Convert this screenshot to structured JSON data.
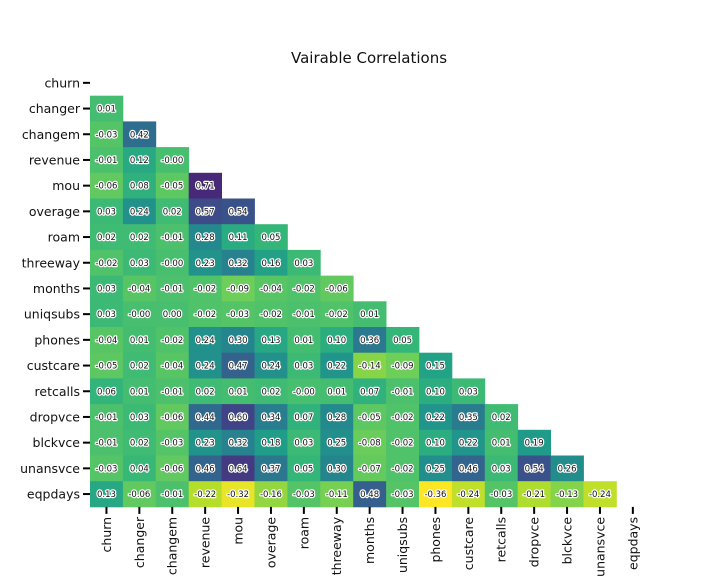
{
  "chart_data": {
    "type": "heatmap",
    "title": "Vairable Correlations",
    "variables": [
      "churn",
      "changer",
      "changem",
      "revenue",
      "mou",
      "overage",
      "roam",
      "threeway",
      "months",
      "uniqsubs",
      "phones",
      "custcare",
      "retcalls",
      "dropvce",
      "blckvce",
      "unansvce",
      "eqpdays"
    ],
    "matrix_lower": [
      [],
      [
        "0.01"
      ],
      [
        "-0.03",
        "0.42"
      ],
      [
        "-0.01",
        "0.12",
        "-0.00"
      ],
      [
        "-0.06",
        "0.08",
        "-0.05",
        "0.71"
      ],
      [
        "0.03",
        "0.24",
        "0.02",
        "0.57",
        "0.54"
      ],
      [
        "0.02",
        "0.02",
        "-0.01",
        "0.28",
        "0.11",
        "0.05"
      ],
      [
        "-0.02",
        "0.03",
        "-0.00",
        "0.23",
        "0.32",
        "0.16",
        "0.03"
      ],
      [
        "0.03",
        "-0.04",
        "-0.01",
        "-0.02",
        "-0.09",
        "-0.04",
        "-0.02",
        "-0.06"
      ],
      [
        "0.03",
        "-0.00",
        "0.00",
        "-0.02",
        "-0.03",
        "-0.02",
        "-0.01",
        "-0.02",
        "0.01"
      ],
      [
        "-0.04",
        "0.01",
        "-0.02",
        "0.24",
        "0.30",
        "0.13",
        "0.01",
        "0.10",
        "0.36",
        "0.05"
      ],
      [
        "-0.05",
        "0.02",
        "-0.04",
        "0.24",
        "0.47",
        "0.24",
        "0.03",
        "0.22",
        "-0.14",
        "-0.09",
        "0.15"
      ],
      [
        "0.06",
        "0.01",
        "-0.01",
        "0.02",
        "0.01",
        "0.02",
        "-0.00",
        "0.01",
        "0.07",
        "-0.01",
        "0.10",
        "0.03"
      ],
      [
        "-0.01",
        "0.03",
        "-0.06",
        "0.44",
        "0.60",
        "0.34",
        "0.07",
        "0.28",
        "-0.05",
        "-0.02",
        "0.22",
        "0.35",
        "0.02"
      ],
      [
        "-0.01",
        "0.02",
        "-0.03",
        "0.23",
        "0.32",
        "0.18",
        "0.03",
        "0.25",
        "-0.08",
        "-0.02",
        "0.10",
        "0.22",
        "0.01",
        "0.19"
      ],
      [
        "-0.03",
        "0.04",
        "-0.06",
        "0.46",
        "0.64",
        "0.37",
        "0.05",
        "0.30",
        "-0.07",
        "-0.02",
        "0.25",
        "0.46",
        "0.03",
        "0.54",
        "0.26"
      ],
      [
        "0.13",
        "-0.06",
        "-0.01",
        "-0.22",
        "-0.32",
        "-0.16",
        "-0.03",
        "-0.11",
        "0.48",
        "-0.03",
        "-0.36",
        "-0.24",
        "-0.03",
        "-0.21",
        "-0.13",
        "-0.24"
      ]
    ],
    "colormap": "viridis_r",
    "color_range": [
      -0.36,
      0.71
    ],
    "grid": false
  }
}
